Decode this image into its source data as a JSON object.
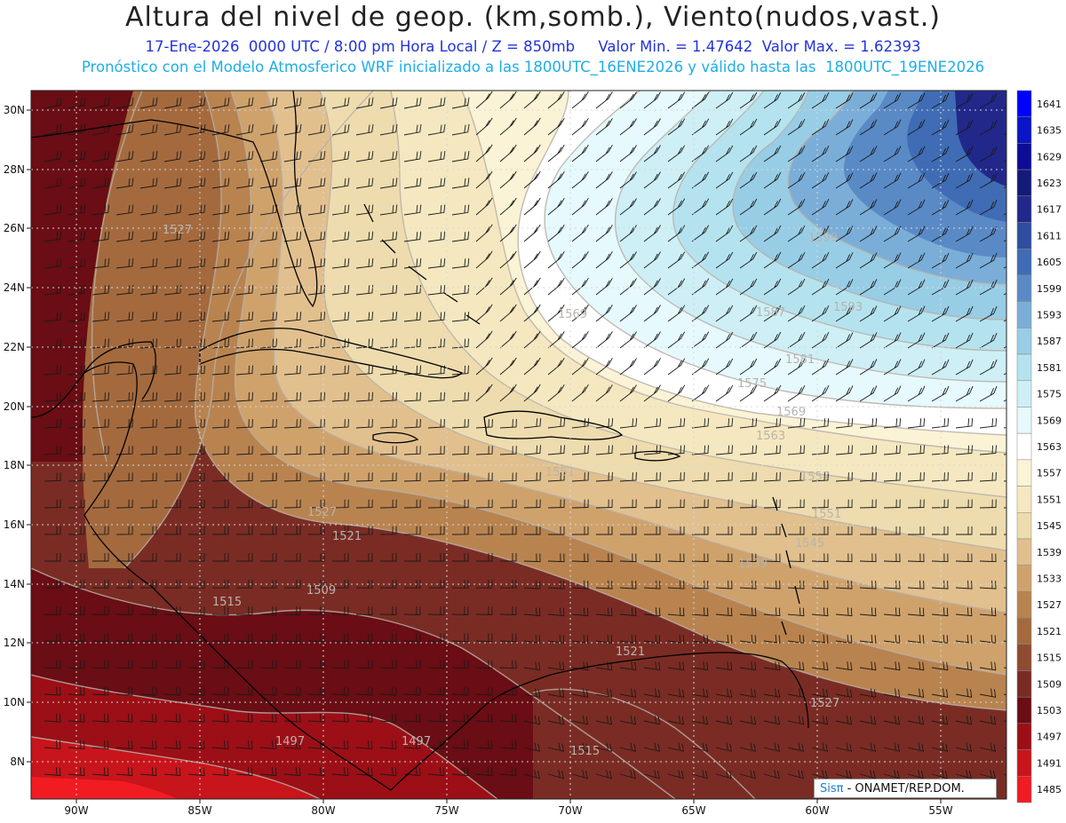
{
  "header": {
    "title": "Altura del nivel de geop. (km,somb.), Viento(nudos,vast.)",
    "line1": "17-Ene-2026  0000 UTC / 8:00 pm Hora Local / Z = 850mb     Valor Min. = 1.47642  Valor Max. = 1.62393",
    "line2": "Pronóstico con el Modelo Atmosferico WRF inicializado a las 1800UTC_16ENE2026 y válido hasta las  1800UTC_19ENE2026"
  },
  "map": {
    "lat_ticks": [
      "30N",
      "28N",
      "26N",
      "24N",
      "22N",
      "20N",
      "18N",
      "16N",
      "14N",
      "12N",
      "10N",
      "8N"
    ],
    "lon_ticks": [
      "90W",
      "85W",
      "80W",
      "75W",
      "70W",
      "65W",
      "60W",
      "55W"
    ],
    "contour_labels": [
      "1527",
      "1569",
      "1587",
      "1593",
      "1599",
      "1581",
      "1575",
      "1569",
      "1563",
      "1551",
      "1557",
      "1551",
      "1545",
      "1539",
      "1527",
      "1521",
      "1509",
      "1515",
      "1521",
      "1527",
      "1497",
      "1497",
      "1515"
    ]
  },
  "colorbar": {
    "levels": [
      "1641",
      "1635",
      "1629",
      "1623",
      "1617",
      "1611",
      "1605",
      "1599",
      "1593",
      "1587",
      "1581",
      "1575",
      "1569",
      "1563",
      "1557",
      "1551",
      "1545",
      "1539",
      "1533",
      "1527",
      "1521",
      "1515",
      "1509",
      "1503",
      "1497",
      "1491",
      "1485"
    ],
    "colors": [
      "#0000ff",
      "#0a14c8",
      "#0c0c96",
      "#141a78",
      "#22288a",
      "#2f4ea0",
      "#3f6cb4",
      "#5a8ac6",
      "#7aaed8",
      "#98cde6",
      "#b4e3ef",
      "#cdeff5",
      "#e6f9fd",
      "#ffffff",
      "#fbf3d5",
      "#f5e8c0",
      "#eedcae",
      "#e1c08e",
      "#cfa26c",
      "#b9834f",
      "#a46a3e",
      "#8f4b32",
      "#7a2c24",
      "#6a0d14",
      "#9c0f16",
      "#c8141b",
      "#f01c22"
    ]
  },
  "credit": {
    "brand": "Sisπ",
    "org": " - ONAMET/REP.DOM."
  }
}
